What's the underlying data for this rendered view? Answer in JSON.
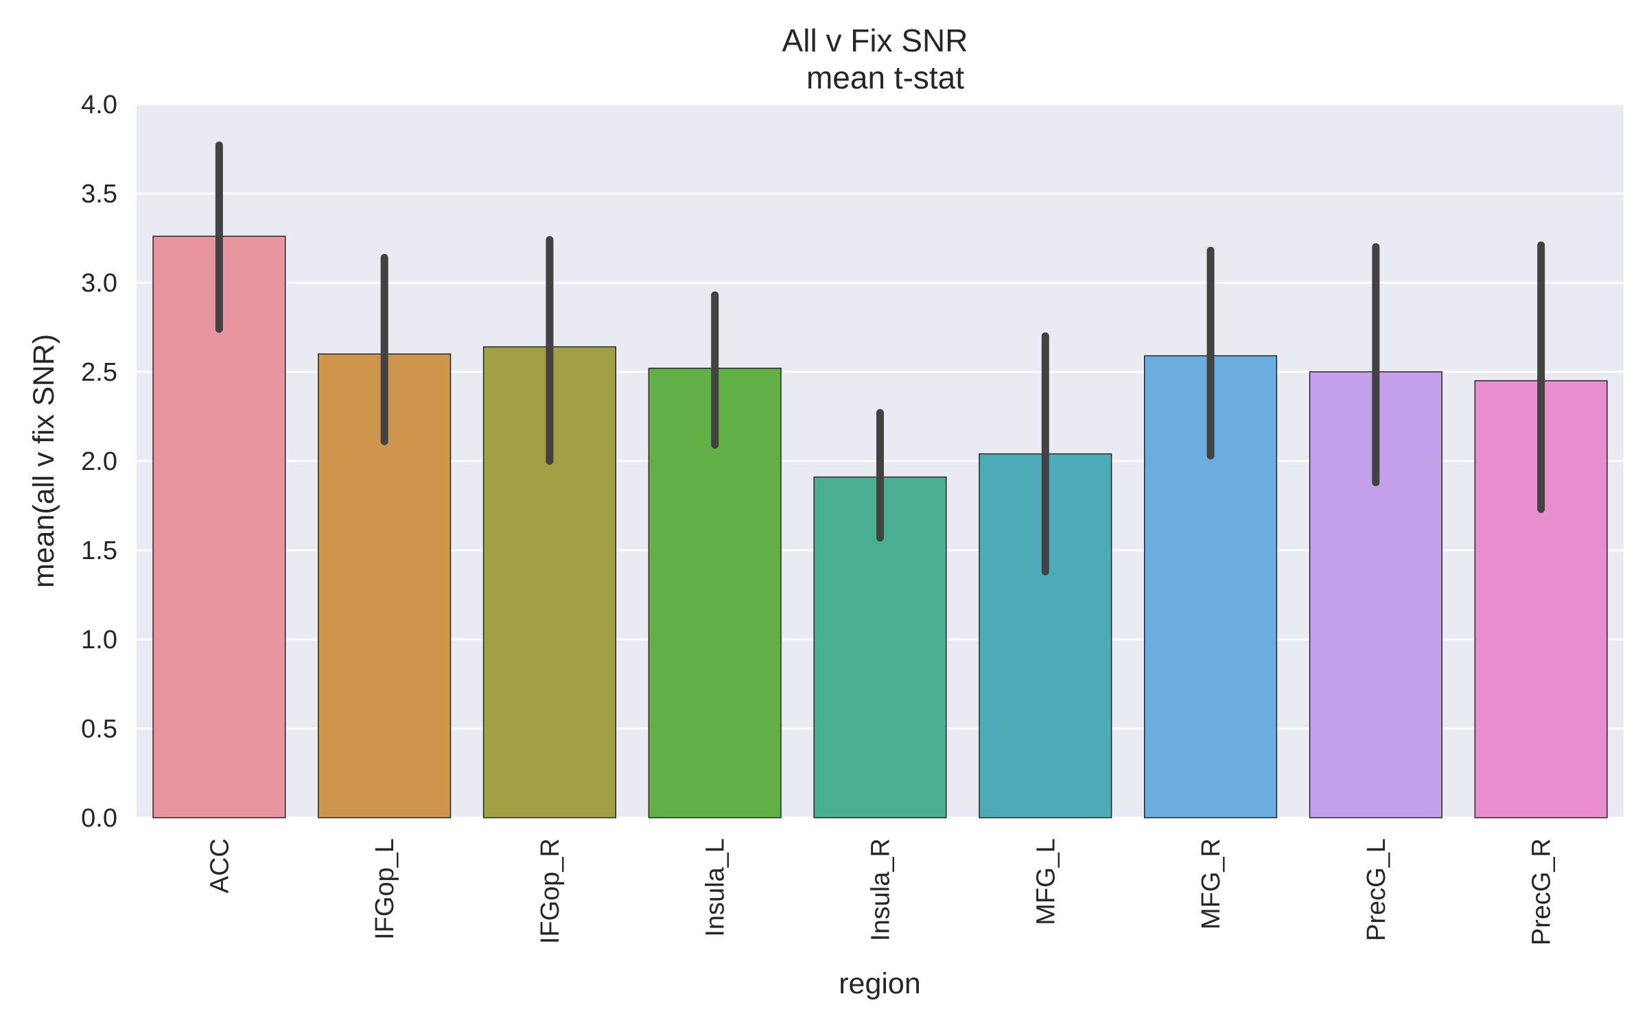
{
  "chart_data": {
    "type": "bar",
    "title_line1": "All v Fix SNR",
    "title_line2": "mean t-stat",
    "xlabel": "region",
    "ylabel": "mean(all v fix SNR)",
    "ylim": [
      0,
      4.0
    ],
    "yticks": [
      "0.0",
      "0.5",
      "1.0",
      "1.5",
      "2.0",
      "2.5",
      "3.0",
      "3.5",
      "4.0"
    ],
    "ytick_values": [
      0,
      0.5,
      1.0,
      1.5,
      2.0,
      2.5,
      3.0,
      3.5,
      4.0
    ],
    "grid": true,
    "categories": [
      "ACC",
      "IFGop_L",
      "IFGop_R",
      "Insula_L",
      "Insula_R",
      "MFG_L",
      "MFG_R",
      "PrecG_L",
      "PrecG_R"
    ],
    "values": [
      3.26,
      2.6,
      2.64,
      2.52,
      1.91,
      2.04,
      2.59,
      2.5,
      2.45
    ],
    "error_low": [
      2.74,
      2.11,
      2.0,
      2.09,
      1.57,
      1.38,
      2.03,
      1.88,
      1.73
    ],
    "error_high": [
      3.77,
      3.14,
      3.24,
      2.93,
      2.27,
      2.7,
      3.18,
      3.2,
      3.21
    ],
    "colors": [
      "#e8959f",
      "#d0954d",
      "#a29f45",
      "#61b047",
      "#4aae92",
      "#4dabb8",
      "#6badde",
      "#c49fea",
      "#e88ecf"
    ],
    "background_color": "#eaeaf2",
    "grid_color": "#ffffff",
    "errorbar_color": "#424242"
  }
}
